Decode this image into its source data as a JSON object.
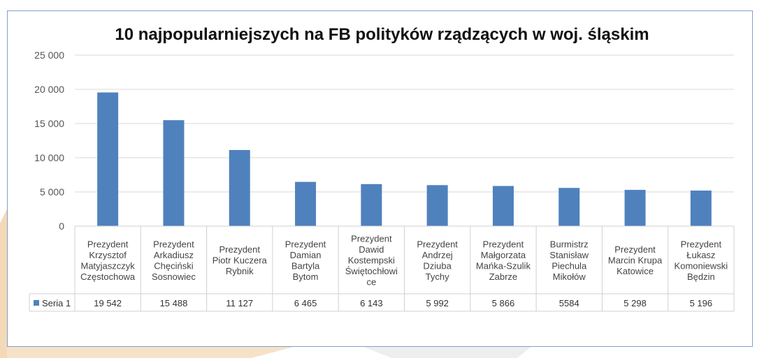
{
  "chart_data": {
    "type": "bar",
    "title": "10 najpopularniejszych na FB polityków rządzących w woj. śląskim",
    "ylim": [
      0,
      25000
    ],
    "yticks": [
      0,
      5000,
      10000,
      15000,
      20000,
      25000
    ],
    "ytick_labels": [
      "0",
      "5 000",
      "10 000",
      "15 000",
      "20 000",
      "25 000"
    ],
    "grid": true,
    "categories": [
      [
        "Prezydent",
        "Krzysztof",
        "Matyjaszczyk",
        "Częstochowa"
      ],
      [
        "Prezydent",
        "Arkadiusz",
        "Chęciński",
        "Sosnowiec"
      ],
      [
        "Prezydent",
        "Piotr Kuczera",
        "Rybnik"
      ],
      [
        "Prezydent",
        "Damian",
        "Bartyla",
        "Bytom"
      ],
      [
        "Prezydent",
        "Dawid",
        "Kostempski",
        "Świętochłowi",
        "ce"
      ],
      [
        "Prezydent",
        "Andrzej",
        "Dziuba",
        "Tychy"
      ],
      [
        "Prezydent",
        "Małgorzata",
        "Mańka-Szulik",
        "Zabrze"
      ],
      [
        "Burmistrz",
        "Stanisław",
        "Piechula",
        "Mikołów"
      ],
      [
        "Prezydent",
        "Marcin Krupa",
        "Katowice"
      ],
      [
        "Prezydent",
        "Łukasz",
        "Komoniewski",
        "Będzin"
      ]
    ],
    "series": [
      {
        "name": "Seria 1",
        "color": "#4f81bd",
        "values": [
          19542,
          15488,
          11127,
          6465,
          6143,
          5992,
          5866,
          5584,
          5298,
          5196
        ],
        "value_labels": [
          "19 542",
          "15 488",
          "11 127",
          "6 465",
          "6 143",
          "5 992",
          "5 866",
          "5584",
          "5 298",
          "5 196"
        ]
      }
    ]
  }
}
